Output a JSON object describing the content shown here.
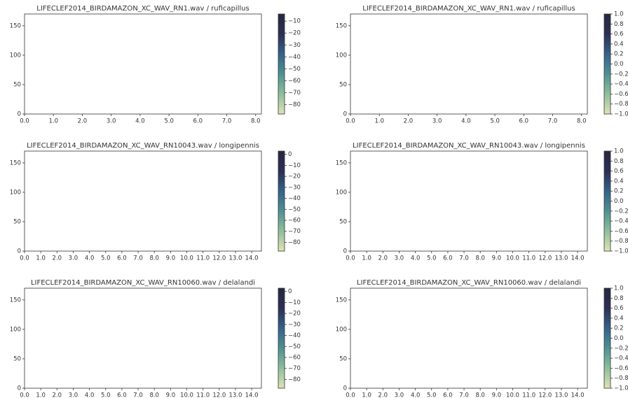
{
  "chart_data": [
    {
      "type": "spectrogram",
      "title": "LIFECLEF2014_BIRDAMAZON_XC_WAV_RN1.wav / ruficapillus",
      "xlim": [
        0,
        8.2
      ],
      "xticks": [
        {
          "value": 0,
          "label": "0.0"
        },
        {
          "value": 1,
          "label": "1.0"
        },
        {
          "value": 2,
          "label": "2.0"
        },
        {
          "value": 3,
          "label": "3.0"
        },
        {
          "value": 4,
          "label": "4.0"
        },
        {
          "value": 5,
          "label": "5.0"
        },
        {
          "value": 6,
          "label": "6.0"
        },
        {
          "value": 7,
          "label": "7.0"
        },
        {
          "value": 8,
          "label": "8.0"
        }
      ],
      "ylim": [
        0,
        170
      ],
      "yticks": [
        0,
        50,
        100,
        150
      ],
      "clim": [
        -88,
        -4
      ],
      "cticks": [
        {
          "value": -10,
          "label": "−10"
        },
        {
          "value": -20,
          "label": "−20"
        },
        {
          "value": -30,
          "label": "−30"
        },
        {
          "value": -40,
          "label": "−40"
        },
        {
          "value": -50,
          "label": "−50"
        },
        {
          "value": -60,
          "label": "−60"
        },
        {
          "value": -70,
          "label": "−70"
        },
        {
          "value": -80,
          "label": "−80"
        }
      ],
      "colormap": [
        "#dfe3b6",
        "#8fbf9c",
        "#4f9192",
        "#36628a",
        "#2c2f55",
        "#272740"
      ]
    },
    {
      "type": "spectrogram",
      "title": "LIFECLEF2014_BIRDAMAZON_XC_WAV_RN1.wav / ruficapillus",
      "xlim": [
        0,
        8.2
      ],
      "xticks": [
        {
          "value": 0,
          "label": "0.0"
        },
        {
          "value": 1,
          "label": "1.0"
        },
        {
          "value": 2,
          "label": "2.0"
        },
        {
          "value": 3,
          "label": "3.0"
        },
        {
          "value": 4,
          "label": "4.0"
        },
        {
          "value": 5,
          "label": "5.0"
        },
        {
          "value": 6,
          "label": "6.0"
        },
        {
          "value": 7,
          "label": "7.0"
        },
        {
          "value": 8,
          "label": "8.0"
        }
      ],
      "ylim": [
        0,
        170
      ],
      "yticks": [
        0,
        50,
        100,
        150
      ],
      "clim": [
        -1,
        1
      ],
      "cticks": [
        {
          "value": 1,
          "label": "1.0"
        },
        {
          "value": 0.8,
          "label": "0.8"
        },
        {
          "value": 0.6,
          "label": "0.6"
        },
        {
          "value": 0.4,
          "label": "0.4"
        },
        {
          "value": 0.2,
          "label": "0.2"
        },
        {
          "value": 0,
          "label": "0.0"
        },
        {
          "value": -0.2,
          "label": "−0.2"
        },
        {
          "value": -0.4,
          "label": "−0.4"
        },
        {
          "value": -0.6,
          "label": "−0.6"
        },
        {
          "value": -0.8,
          "label": "−0.8"
        },
        {
          "value": -1,
          "label": "−1.0"
        }
      ],
      "colormap": [
        "#dfe3b6",
        "#8fbf9c",
        "#4f9192",
        "#36628a",
        "#2c2f55",
        "#272740"
      ]
    },
    {
      "type": "spectrogram",
      "title": "LIFECLEF2014_BIRDAMAZON_XC_WAV_RN10043.wav / longipennis",
      "xlim": [
        0,
        14.6
      ],
      "xticks": [
        {
          "value": 0,
          "label": "0.0"
        },
        {
          "value": 1,
          "label": "1.0"
        },
        {
          "value": 2,
          "label": "2.0"
        },
        {
          "value": 3,
          "label": "3.0"
        },
        {
          "value": 4,
          "label": "4.0"
        },
        {
          "value": 5,
          "label": "5.0"
        },
        {
          "value": 6,
          "label": "6.0"
        },
        {
          "value": 7,
          "label": "7.0"
        },
        {
          "value": 8,
          "label": "8.0"
        },
        {
          "value": 9,
          "label": "9.0"
        },
        {
          "value": 10,
          "label": "10.0"
        },
        {
          "value": 11,
          "label": "11.0"
        },
        {
          "value": 12,
          "label": "12.0"
        },
        {
          "value": 13,
          "label": "13.0"
        },
        {
          "value": 14,
          "label": "14.0"
        }
      ],
      "ylim": [
        0,
        170
      ],
      "yticks": [
        0,
        50,
        100,
        150
      ],
      "clim": [
        -88,
        3
      ],
      "cticks": [
        0,
        {
          "value": -10,
          "label": "−10"
        },
        {
          "value": -20,
          "label": "−20"
        },
        {
          "value": -30,
          "label": "−30"
        },
        {
          "value": -40,
          "label": "−40"
        },
        {
          "value": -50,
          "label": "−50"
        },
        {
          "value": -60,
          "label": "−60"
        },
        {
          "value": -70,
          "label": "−70"
        },
        {
          "value": -80,
          "label": "−80"
        }
      ],
      "colormap": [
        "#dfe3b6",
        "#8fbf9c",
        "#4f9192",
        "#36628a",
        "#2c2f55",
        "#272740"
      ]
    },
    {
      "type": "spectrogram",
      "title": "LIFECLEF2014_BIRDAMAZON_XC_WAV_RN10043.wav / longipennis",
      "xlim": [
        0,
        14.6
      ],
      "xticks": [
        {
          "value": 0,
          "label": "0.0"
        },
        {
          "value": 1,
          "label": "1.0"
        },
        {
          "value": 2,
          "label": "2.0"
        },
        {
          "value": 3,
          "label": "3.0"
        },
        {
          "value": 4,
          "label": "4.0"
        },
        {
          "value": 5,
          "label": "5.0"
        },
        {
          "value": 6,
          "label": "6.0"
        },
        {
          "value": 7,
          "label": "7.0"
        },
        {
          "value": 8,
          "label": "8.0"
        },
        {
          "value": 9,
          "label": "9.0"
        },
        {
          "value": 10,
          "label": "10.0"
        },
        {
          "value": 11,
          "label": "11.0"
        },
        {
          "value": 12,
          "label": "12.0"
        },
        {
          "value": 13,
          "label": "13.0"
        },
        {
          "value": 14,
          "label": "14.0"
        }
      ],
      "ylim": [
        0,
        170
      ],
      "yticks": [
        0,
        50,
        100,
        150
      ],
      "clim": [
        -1,
        1
      ],
      "cticks": [
        {
          "value": 1,
          "label": "1.0"
        },
        {
          "value": 0.8,
          "label": "0.8"
        },
        {
          "value": 0.6,
          "label": "0.6"
        },
        {
          "value": 0.4,
          "label": "0.4"
        },
        {
          "value": 0.2,
          "label": "0.2"
        },
        {
          "value": 0,
          "label": "0.0"
        },
        {
          "value": -0.2,
          "label": "−0.2"
        },
        {
          "value": -0.4,
          "label": "−0.4"
        },
        {
          "value": -0.6,
          "label": "−0.6"
        },
        {
          "value": -0.8,
          "label": "−0.8"
        },
        {
          "value": -1,
          "label": "−1.0"
        }
      ],
      "colormap": [
        "#dfe3b6",
        "#8fbf9c",
        "#4f9192",
        "#36628a",
        "#2c2f55",
        "#272740"
      ]
    },
    {
      "type": "spectrogram",
      "title": "LIFECLEF2014_BIRDAMAZON_XC_WAV_RN10060.wav / delalandi",
      "xlim": [
        0,
        14.6
      ],
      "xticks": [
        {
          "value": 0,
          "label": "0.0"
        },
        {
          "value": 1,
          "label": "1.0"
        },
        {
          "value": 2,
          "label": "2.0"
        },
        {
          "value": 3,
          "label": "3.0"
        },
        {
          "value": 4,
          "label": "4.0"
        },
        {
          "value": 5,
          "label": "5.0"
        },
        {
          "value": 6,
          "label": "6.0"
        },
        {
          "value": 7,
          "label": "7.0"
        },
        {
          "value": 8,
          "label": "8.0"
        },
        {
          "value": 9,
          "label": "9.0"
        },
        {
          "value": 10,
          "label": "10.0"
        },
        {
          "value": 11,
          "label": "11.0"
        },
        {
          "value": 12,
          "label": "12.0"
        },
        {
          "value": 13,
          "label": "13.0"
        },
        {
          "value": 14,
          "label": "14.0"
        }
      ],
      "ylim": [
        0,
        170
      ],
      "yticks": [
        0,
        50,
        100,
        150
      ],
      "clim": [
        -88,
        3
      ],
      "cticks": [
        0,
        {
          "value": -10,
          "label": "−10"
        },
        {
          "value": -20,
          "label": "−20"
        },
        {
          "value": -30,
          "label": "−30"
        },
        {
          "value": -40,
          "label": "−40"
        },
        {
          "value": -50,
          "label": "−50"
        },
        {
          "value": -60,
          "label": "−60"
        },
        {
          "value": -70,
          "label": "−70"
        },
        {
          "value": -80,
          "label": "−80"
        }
      ],
      "colormap": [
        "#dfe3b6",
        "#8fbf9c",
        "#4f9192",
        "#36628a",
        "#2c2f55",
        "#272740"
      ]
    },
    {
      "type": "spectrogram",
      "title": "LIFECLEF2014_BIRDAMAZON_XC_WAV_RN10060.wav / delalandi",
      "xlim": [
        0,
        14.6
      ],
      "xticks": [
        {
          "value": 0,
          "label": "0.0"
        },
        {
          "value": 1,
          "label": "1.0"
        },
        {
          "value": 2,
          "label": "2.0"
        },
        {
          "value": 3,
          "label": "3.0"
        },
        {
          "value": 4,
          "label": "4.0"
        },
        {
          "value": 5,
          "label": "5.0"
        },
        {
          "value": 6,
          "label": "6.0"
        },
        {
          "value": 7,
          "label": "7.0"
        },
        {
          "value": 8,
          "label": "8.0"
        },
        {
          "value": 9,
          "label": "9.0"
        },
        {
          "value": 10,
          "label": "10.0"
        },
        {
          "value": 11,
          "label": "11.0"
        },
        {
          "value": 12,
          "label": "12.0"
        },
        {
          "value": 13,
          "label": "13.0"
        },
        {
          "value": 14,
          "label": "14.0"
        }
      ],
      "ylim": [
        0,
        170
      ],
      "yticks": [
        0,
        50,
        100,
        150
      ],
      "clim": [
        -1,
        1
      ],
      "cticks": [
        {
          "value": 1,
          "label": "1.0"
        },
        {
          "value": 0.8,
          "label": "0.8"
        },
        {
          "value": 0.6,
          "label": "0.6"
        },
        {
          "value": 0.4,
          "label": "0.4"
        },
        {
          "value": 0.2,
          "label": "0.2"
        },
        {
          "value": 0,
          "label": "0.0"
        },
        {
          "value": -0.2,
          "label": "−0.2"
        },
        {
          "value": -0.4,
          "label": "−0.4"
        },
        {
          "value": -0.6,
          "label": "−0.6"
        },
        {
          "value": -0.8,
          "label": "−0.8"
        },
        {
          "value": -1,
          "label": "−1.0"
        }
      ],
      "colormap": [
        "#dfe3b6",
        "#8fbf9c",
        "#4f9192",
        "#36628a",
        "#2c2f55",
        "#272740"
      ]
    }
  ]
}
